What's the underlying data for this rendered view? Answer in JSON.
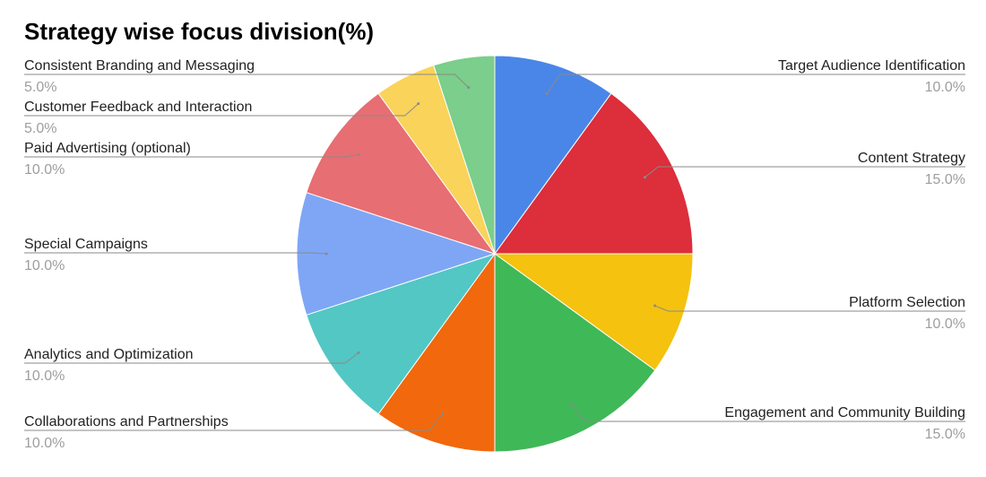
{
  "chart_data": {
    "type": "pie",
    "title": "Strategy wise focus division(%)",
    "slices": [
      {
        "label": "Target Audience Identification",
        "value": 10.0,
        "value_label": "10.0%",
        "color": "#4A86E8"
      },
      {
        "label": "Content Strategy",
        "value": 15.0,
        "value_label": "15.0%",
        "color": "#DC2E3B"
      },
      {
        "label": "Platform Selection",
        "value": 10.0,
        "value_label": "10.0%",
        "color": "#F4C20F"
      },
      {
        "label": "Engagement and Community Building",
        "value": 15.0,
        "value_label": "15.0%",
        "color": "#3FB858"
      },
      {
        "label": "Collaborations and Partnerships",
        "value": 10.0,
        "value_label": "10.0%",
        "color": "#F2680C"
      },
      {
        "label": "Analytics and Optimization",
        "value": 10.0,
        "value_label": "10.0%",
        "color": "#52C7C4"
      },
      {
        "label": "Special Campaigns",
        "value": 10.0,
        "value_label": "10.0%",
        "color": "#7FA6F5"
      },
      {
        "label": "Paid Advertising (optional)",
        "value": 10.0,
        "value_label": "10.0%",
        "color": "#E76E73"
      },
      {
        "label": "Customer Feedback and Interaction",
        "value": 5.0,
        "value_label": "5.0%",
        "color": "#F9D35A"
      },
      {
        "label": "Consistent Branding and Messaging",
        "value": 5.0,
        "value_label": "5.0%",
        "color": "#7BCE8B"
      }
    ],
    "legend": "none",
    "label_placement": "outside with leader lines"
  }
}
